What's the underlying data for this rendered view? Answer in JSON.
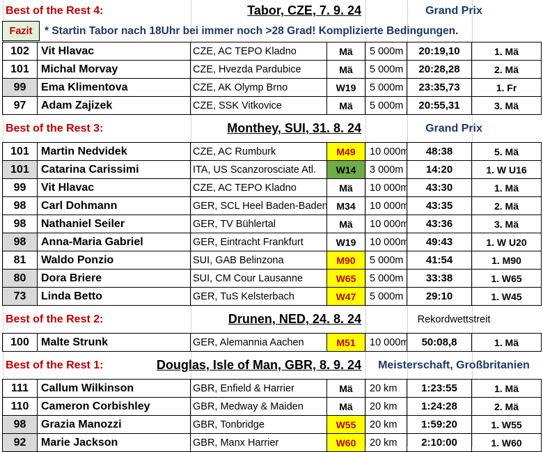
{
  "sections": [
    {
      "title": "Best of the Rest 4:",
      "event": "Tabor, CZE, 7. 9. 24",
      "type": "Grand Prix",
      "type_style": "blue",
      "note_label": "Fazit",
      "note": "* Startin Tabor nach 18Uhr bei immer noch >28 Grad! Komplizierte Bedingungen.",
      "rows": [
        {
          "points": "102",
          "name": "Vit Hlavac",
          "club": "CZE, AC TEPO Kladno",
          "cat": "Mä",
          "cat_style": "plain",
          "dist": "5 000m",
          "time": "20:19,10",
          "place": "1. Mä",
          "grey": false
        },
        {
          "points": "101",
          "name": "Michal Morvay",
          "club": "CZE, Hvezda Pardubice",
          "cat": "Mä",
          "cat_style": "plain",
          "dist": "5 000m",
          "time": "20:28,28",
          "place": "2. Mä",
          "grey": false
        },
        {
          "points": "99",
          "name": "Ema Klimentova",
          "club": "CZE, AK Olymp Brno",
          "cat": "W19",
          "cat_style": "plain",
          "dist": "5 000m",
          "time": "23:35,73",
          "place": "1. Fr",
          "grey": true
        },
        {
          "points": "97",
          "name": "Adam Zajizek",
          "club": "CZE, SSK Vitkovice",
          "cat": "Mä",
          "cat_style": "plain",
          "dist": "5 000m",
          "time": "20:55,31",
          "place": "3. Mä",
          "grey": false
        }
      ]
    },
    {
      "title": "Best of the Rest 3:",
      "event": "Monthey, SUI, 31. 8. 24",
      "type": "Grand Prix",
      "type_style": "blue",
      "rows": [
        {
          "points": "101",
          "name": "Martin Nedvidek",
          "club": "CZE, AC Rumburk",
          "cat": "M49",
          "cat_style": "yellow",
          "dist": "10 000m",
          "time": "48:38",
          "place": "5. Mä",
          "grey": false
        },
        {
          "points": "101",
          "name": "Catarina Carissimi",
          "club": "ITA, US Scanzorosciate Atl.",
          "cat": "W14",
          "cat_style": "green",
          "dist": "3 000m",
          "time": "14:20",
          "place": "1. W U16",
          "grey": true
        },
        {
          "points": "99",
          "name": "Vit Hlavac",
          "club": "CZE, AC TEPO Kladno",
          "cat": "Mä",
          "cat_style": "plain",
          "dist": "10 000m",
          "time": "43:30",
          "place": "1. Mä",
          "grey": false
        },
        {
          "points": "98",
          "name": "Carl Dohmann",
          "club": "GER, SCL Heel Baden-Baden",
          "cat": "M34",
          "cat_style": "plain",
          "dist": "10 000m",
          "time": "43:35",
          "place": "2. Mä",
          "grey": false
        },
        {
          "points": "98",
          "name": "Nathaniel Seiler",
          "club": "GER, TV Bühlertal",
          "cat": "Mä",
          "cat_style": "plain",
          "dist": "10 000m",
          "time": "43:36",
          "place": "3. Mä",
          "grey": false
        },
        {
          "points": "98",
          "name": "Anna-Maria Gabriel",
          "club": "GER, Eintracht Frankfurt",
          "cat": "W19",
          "cat_style": "plain",
          "dist": "10 000m",
          "time": "49:43",
          "place": "1. W U20",
          "grey": true
        },
        {
          "points": "81",
          "name": "Waldo Ponzio",
          "club": "SUI, GAB Belinzona",
          "cat": "M90",
          "cat_style": "yellow",
          "dist": "5 000m",
          "time": "41:54",
          "place": "1. M90",
          "grey": false
        },
        {
          "points": "80",
          "name": "Dora Briere",
          "club": "SUI, CM Cour Lausanne",
          "cat": "W65",
          "cat_style": "yellow",
          "dist": "5 000m",
          "time": "33:38",
          "place": "1. W65",
          "grey": true
        },
        {
          "points": "73",
          "name": "Linda Betto",
          "club": "GER, TuS Kelsterbach",
          "cat": "W47",
          "cat_style": "yellow",
          "dist": "5 000m",
          "time": "29:10",
          "place": "1. W45",
          "grey": true
        }
      ]
    },
    {
      "title": "Best of the Rest 2:",
      "event": "Drunen, NED, 24. 8. 24",
      "type": "Rekordwettstreit",
      "type_style": "plain",
      "rows": [
        {
          "points": "100",
          "name": "Malte Strunk",
          "club": "GER, Alemannia Aachen",
          "cat": "M51",
          "cat_style": "yellow",
          "dist": "10 000m",
          "time": "50:08,8",
          "place": "1. Mä",
          "grey": false
        }
      ]
    },
    {
      "title": "Best of the Rest 1:",
      "event": "Douglas, Isle of Man, GBR, 8. 9. 24",
      "type": "Meisterschaft, Großbritanien",
      "type_style": "blue",
      "rows": [
        {
          "points": "111",
          "name": "Callum Wilkinson",
          "club": "GBR, Enfield & Harrier",
          "cat": "Mä",
          "cat_style": "plain",
          "dist": "20 km",
          "time": "1:23:55",
          "place": "1. Mä",
          "grey": false
        },
        {
          "points": "110",
          "name": "Cameron Corbishley",
          "club": "GBR, Medway & Maiden",
          "cat": "Mä",
          "cat_style": "plain",
          "dist": "20 km",
          "time": "1:24:28",
          "place": "2. Mä",
          "grey": false
        },
        {
          "points": "98",
          "name": "Grazia Manozzi",
          "club": "GBR, Tonbridge",
          "cat": "W55",
          "cat_style": "yellow",
          "dist": "20 km",
          "time": "1:59:20",
          "place": "1. W55",
          "grey": true
        },
        {
          "points": "92",
          "name": "Marie Jackson",
          "club": "GBR, Manx Harrier",
          "cat": "W60",
          "cat_style": "yellow",
          "dist": "20 km",
          "time": "2:10:00",
          "place": "1. W60",
          "grey": true
        }
      ]
    }
  ]
}
